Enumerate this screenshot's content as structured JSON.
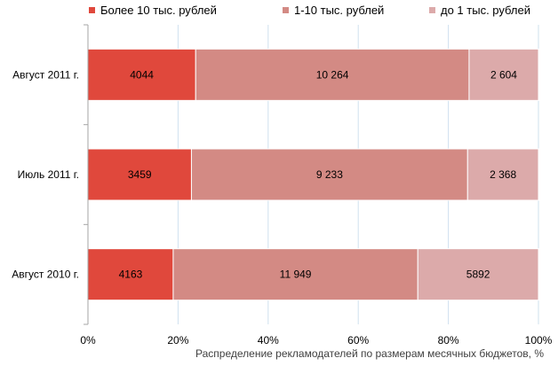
{
  "chart_data": {
    "type": "bar",
    "orientation": "horizontal",
    "stacked": "percent",
    "categories": [
      "Август 2011 г.",
      "Июль 2011 г.",
      "Август 2010 г."
    ],
    "series": [
      {
        "name": "Более 10 тыс. рублей",
        "color": "#e0483c",
        "values": [
          4044,
          3459,
          4163
        ],
        "labels": [
          "4044",
          "3459",
          "4163"
        ]
      },
      {
        "name": "1-10 тыс. рублей",
        "color": "#d38a84",
        "values": [
          10264,
          9233,
          11949
        ],
        "labels": [
          "10 264",
          "9 233",
          "11 949"
        ]
      },
      {
        "name": "до 1 тыс. рублей",
        "color": "#dcaaaa",
        "values": [
          2604,
          2368,
          5892
        ],
        "labels": [
          "2 604",
          "2 368",
          "5892"
        ]
      }
    ],
    "xlabel": "Распределение рекламодателей по размерам месячных бюджетов, %",
    "ylabel": "",
    "xlim": [
      0,
      100
    ],
    "xticks": [
      "0%",
      "20%",
      "40%",
      "60%",
      "80%",
      "100%"
    ],
    "grid": true,
    "legend_position": "top"
  }
}
